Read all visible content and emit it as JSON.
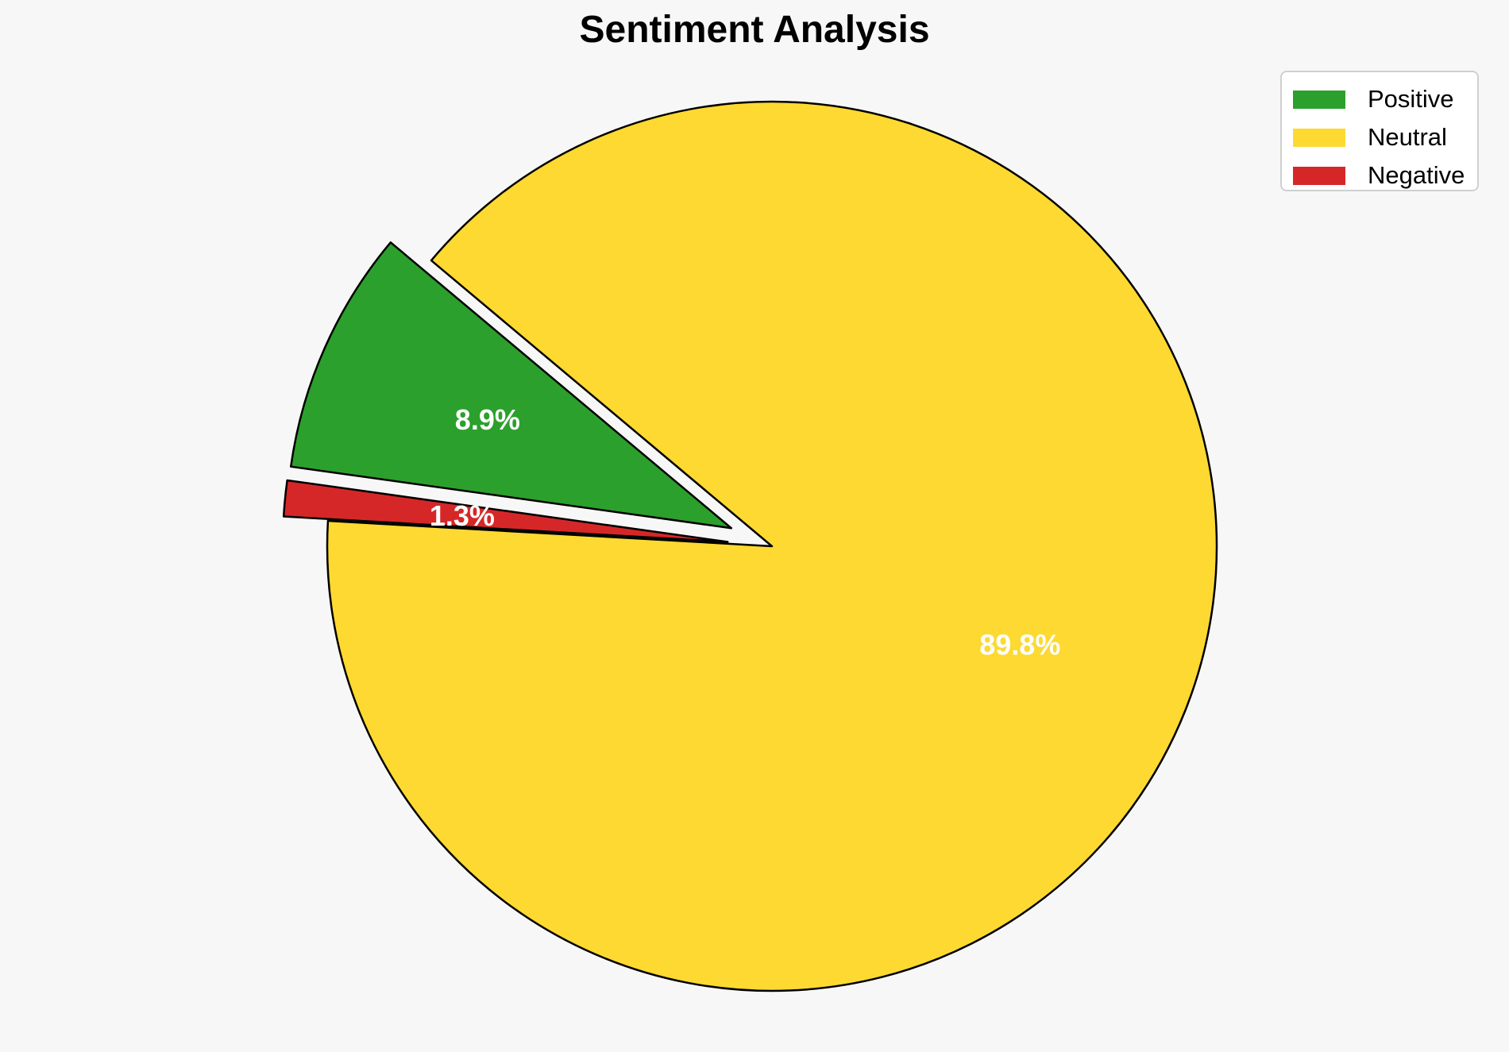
{
  "chart_data": {
    "type": "pie",
    "title": "Sentiment Analysis",
    "slices": [
      {
        "label": "Positive",
        "value": 8.9,
        "display": "8.9%",
        "color": "#2ca02c",
        "exploded": true
      },
      {
        "label": "Negative",
        "value": 1.3,
        "display": "1.3%",
        "color": "#d62728",
        "exploded": true
      },
      {
        "label": "Neutral",
        "value": 89.8,
        "display": "89.8%",
        "color": "#fdd931",
        "exploded": false
      }
    ],
    "legend": {
      "placement": "top-right",
      "entries": [
        {
          "label": "Positive",
          "color": "#2ca02c"
        },
        {
          "label": "Neutral",
          "color": "#fdd931"
        },
        {
          "label": "Negative",
          "color": "#d62728"
        }
      ]
    },
    "edge_color": "#000000",
    "label_color": "#ffffff"
  }
}
